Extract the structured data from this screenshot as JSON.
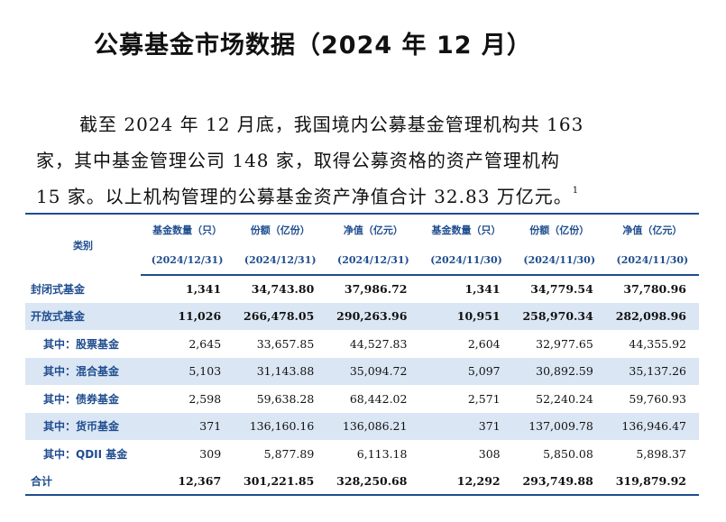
{
  "title": "公募基金市场数据（2024 年 12 月）",
  "paragraph": {
    "line1": "截至 2024 年 12 月底，我国境内公募基金管理机构共 163",
    "line2": "家，其中基金管理公司 148 家，取得公募资格的资产管理机构",
    "line3": "15 家。以上机构管理的公募基金资产净值合计 32.83 万亿元。",
    "footnote_mark": "1"
  },
  "table": {
    "category_header": "类别",
    "columns": [
      {
        "label": "基金数量（只）",
        "date": "(2024/12/31)"
      },
      {
        "label": "份额（亿份）",
        "date": "(2024/12/31)"
      },
      {
        "label": "净值（亿元）",
        "date": "(2024/12/31)"
      },
      {
        "label": "基金数量（只）",
        "date": "(2024/11/30)"
      },
      {
        "label": "份额（亿份）",
        "date": "(2024/11/30)"
      },
      {
        "label": "净值（亿元）",
        "date": "(2024/11/30)"
      }
    ],
    "rows": [
      {
        "label": "封闭式基金",
        "values": [
          "1,341",
          "34,743.80",
          "37,986.72",
          "1,341",
          "34,779.54",
          "37,780.96"
        ]
      },
      {
        "label": "开放式基金",
        "values": [
          "11,026",
          "266,478.05",
          "290,263.96",
          "10,951",
          "258,970.34",
          "282,098.96"
        ]
      },
      {
        "label": "其中：股票基金",
        "values": [
          "2,645",
          "33,657.85",
          "44,527.83",
          "2,604",
          "32,977.65",
          "44,355.92"
        ]
      },
      {
        "label": "其中：混合基金",
        "values": [
          "5,103",
          "31,143.88",
          "35,094.72",
          "5,097",
          "30,892.59",
          "35,137.26"
        ]
      },
      {
        "label": "其中：债券基金",
        "values": [
          "2,598",
          "59,638.28",
          "68,442.02",
          "2,571",
          "52,240.24",
          "59,760.93"
        ]
      },
      {
        "label": "其中：货币基金",
        "values": [
          "371",
          "136,160.16",
          "136,086.21",
          "371",
          "137,009.78",
          "136,946.47"
        ]
      },
      {
        "label": "其中：QDII 基金",
        "values": [
          "309",
          "5,877.89",
          "6,113.18",
          "308",
          "5,850.08",
          "5,898.37"
        ]
      },
      {
        "label": "合计",
        "values": [
          "12,367",
          "301,221.85",
          "328,250.68",
          "12,292",
          "293,749.88",
          "319,879.92"
        ]
      }
    ]
  }
}
